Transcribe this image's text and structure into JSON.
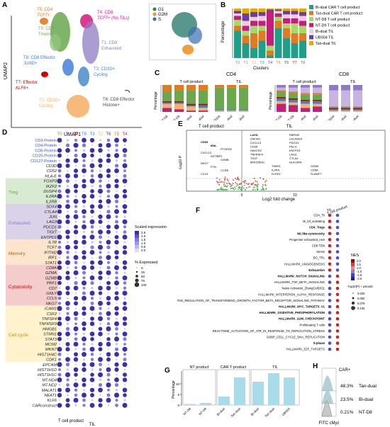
{
  "panels": {
    "A": {
      "letter": "A",
      "xlabel": "UMAP1",
      "ylabel": "UMAP2",
      "clusters": [
        {
          "line1": "T5: CD4",
          "line2": "TCF7+",
          "color": "#e07b22"
        },
        {
          "line1": "T0: CD4",
          "line2": "Tmem",
          "color": "#6aa84f"
        },
        {
          "line1": "T4: CD8",
          "line2": "TCF7+ (No TILs)",
          "color": "#d6177f"
        },
        {
          "line1": "T1: CD8",
          "line2": "Exhausted",
          "color": "#8e7cc3"
        },
        {
          "line1": "T8: CD8 Effector",
          "line2": "JUND+",
          "color": "#3c78d8"
        },
        {
          "line1": "T3: CD3D+",
          "line2": "Cycling",
          "color": "#3d85c6"
        },
        {
          "line1": "T7: Effector",
          "line2": "KLF6+",
          "color": "#cc0000"
        },
        {
          "line1": "T2: CD3D+",
          "line2": "Cycling",
          "color": "#f6b26b"
        },
        {
          "line1": "T6: CD8 Effector",
          "line2": "Histone+",
          "color": "#444444"
        }
      ],
      "inset_legend": [
        "G1",
        "G2M",
        "S"
      ],
      "inset_colors": [
        "#2e7d6e",
        "#f0932b",
        "#3a6fb0"
      ]
    },
    "B": {
      "letter": "B",
      "ylabel": "Percentage",
      "xlabel": "Clusters",
      "categories": [
        "T0",
        "T1",
        "T2",
        "T3",
        "T4",
        "T5",
        "T6",
        "T7",
        "T8"
      ],
      "legend": [
        "Bi-dual CAR T cell product",
        "Tan-dual CAR T cell product",
        "NT-D8 T cell product",
        "NT-D9 T cell product",
        "Bi-dual TIL",
        "UBS04 TIL",
        "Tan-dual TIL"
      ],
      "legend_colors": [
        "#1f9e89",
        "#e07b22",
        "#a6d96a",
        "#c21f7a",
        "#f7c9e0",
        "#6c3d9e",
        "#e6ab02"
      ]
    },
    "C": {
      "letter": "C",
      "cd4_title": "CD4",
      "cd8_title": "CD8",
      "tcell_label": "T cell product",
      "til_label": "TIL",
      "ylabel": "Percentage",
      "cd4_x": [
        "NT-D8",
        "NT-D9",
        "Bi-dual",
        "Tan-dual",
        "UBS04",
        "Bi-dual",
        "Tan-dual"
      ],
      "cd8_x": [
        "NT-D8",
        "NT-D9",
        "Bi-dual",
        "Tan-dual",
        "UBS04",
        "Bi-dual",
        "Tan-dual"
      ]
    },
    "D": {
      "letter": "D",
      "columns": [
        "T0",
        "T1",
        "T7",
        "T8",
        "T3",
        "T2",
        "T6",
        "T5",
        "T4"
      ],
      "column_colors": [
        "#6aa84f",
        "#8e7cc3",
        "#cc0000",
        "#3c78d8",
        "#3d85c6",
        "#f6b26b",
        "#444444",
        "#e07b22",
        "#d6177f"
      ],
      "rows": [
        "CD3-Protein",
        "CD4-Protein",
        "CD8-Protein",
        "CD25-Protein",
        "CD127-Protein",
        "CD3D",
        "CD52",
        "HLA-E",
        "FOXP3",
        "IKZF2",
        "DUSP4",
        "IL2RA",
        "IL2RB",
        "SOX4",
        "CTLA4",
        "JUN",
        "LAG3",
        "PDCD1",
        "TIGIT",
        "ENTPD1",
        "IL7R",
        "TCF7",
        "IFITM2",
        "IRF1",
        "STAT1",
        "CD8A",
        "GZMA",
        "GZMB",
        "PRF1",
        "CD7",
        "GNLY",
        "CCL5",
        "NKG7",
        "ICAM1",
        "CSF2",
        "TNFSF4",
        "TNFRSF9",
        "HMGB1",
        "STMN1",
        "STAT3",
        "MCM2",
        "MKI67",
        "HIST1H4C",
        "CDK1",
        "EPCAM",
        "HIST1H1D",
        "HIST1H1C",
        "MT-ND4",
        "MT-ND2",
        "MALAT1",
        "NEAT1",
        "KLF6",
        "CARconstruct"
      ],
      "groups": [
        "Treg",
        "Exhausted",
        "Memory",
        "Cytotoxicity",
        "Cell cycle"
      ],
      "scale_title": "Scaled expression",
      "scale_ticks": [
        "2.5",
        "2.0",
        "1.5",
        "1.0",
        "0.5",
        "0.0"
      ],
      "pct_title": "% Expressed",
      "pct_ticks": [
        "0",
        "25",
        "50",
        "75",
        "100"
      ],
      "xaxis": "T cell product",
      "xaxis2": "TIL"
    },
    "E": {
      "letter": "E",
      "left_title": "T cell product",
      "right_title": "TIL",
      "xlabel": "Log2 fold change",
      "ylabel": "-Log10 P",
      "xticks": [
        "0",
        "10"
      ],
      "labels_left": [
        "CD69",
        "MAL",
        "PTGER2",
        "CXCL13",
        "IGF2BP2",
        "GZMB",
        "NKG7",
        "FYN",
        "CCR8",
        "CCL5"
      ],
      "labels_right": [
        "LAYN",
        "RBPMS",
        "ZNF391",
        "LDLRAD4",
        "CXCL13",
        "PDCD1",
        "CD38",
        "PELI1",
        "HAVCR2",
        "ENTPD1",
        "TNFRSF9",
        "LAG3",
        "TIGIT",
        "CTLA4",
        "MIR155HG",
        "HLA-DRA",
        "THBS1",
        "GZMK",
        "IL2RA",
        "CD8A",
        "KLRD1",
        "SLAMF7"
      ]
    },
    "F": {
      "letter": "F",
      "rows": [
        "CD4_Th",
        "nk_tnf_activating",
        "CD4_Tregs",
        "NK.like-cytotoxicity",
        "Progenitor exhausted_new",
        "CD8 TEM",
        "Stress",
        "BO_TRL",
        "HALLMARK_ANGIOGENESIS",
        "Exhaustion",
        "HALLMARK_NOTCH_SIGNALING",
        "HALLMARK_TGF_BETA_SIGNALING",
        "Naive Activation_ZhangCell2021",
        "HALLMARK_INTERFERON_ALPHA_RESPONSE",
        "GOBP_NEGATIVE_REGULATION_OF_TRANSFORMING_GROWTH_FACTOR_BETA_RECEPTOR_SIGNALING_PATHWAY",
        "HALLMARK_MYC_TARGETS_V1",
        "HALLMARK_OXIDATIVE_PHOSPHORYLATION",
        "HALLMARK_G2M_CHECKPOINT",
        "Proliferating T cells",
        "REACTOME_ACTIVATION_OF_ATR_IN_RESPONSE_TO_REPLICATION_STRESS",
        "GOBP_CELL_CYCLE_DNA_REPLICATION",
        "S-phase",
        "HALLMARK_E2F_TARGETS"
      ],
      "columns": [
        "TIL",
        "T cell product"
      ],
      "nes_title": "NES",
      "nes_ticks": [
        "2.0",
        "1.5",
        "1.0",
        "-1.0",
        "-1.5",
        "-2.0"
      ],
      "p_title": "-log10(P) + pseudo",
      "p_ticks": [
        "0.025",
        "0.050",
        "0.075",
        "0.100"
      ]
    },
    "G": {
      "letter": "G",
      "groups": [
        "NT product",
        "CAR T product",
        "TIL"
      ],
      "ylabel": "Percentage",
      "x": [
        "NT-D8",
        "NT-D9",
        "Bi-dual",
        "Tan-dual",
        "Bi-dual",
        "Tan-dual",
        "UBS04"
      ],
      "values": [
        0.5,
        1,
        4,
        13,
        11,
        15,
        13
      ],
      "yticks": [
        "0",
        "5",
        "10"
      ]
    },
    "H": {
      "letter": "H",
      "gate": "CAR+",
      "pcts": [
        "48.3%",
        "23.5%",
        "0.21%"
      ],
      "names": [
        "Tan-dual",
        "Bi-dual",
        "NT-D8"
      ],
      "xlabel": "FITC cMyc"
    }
  }
}
